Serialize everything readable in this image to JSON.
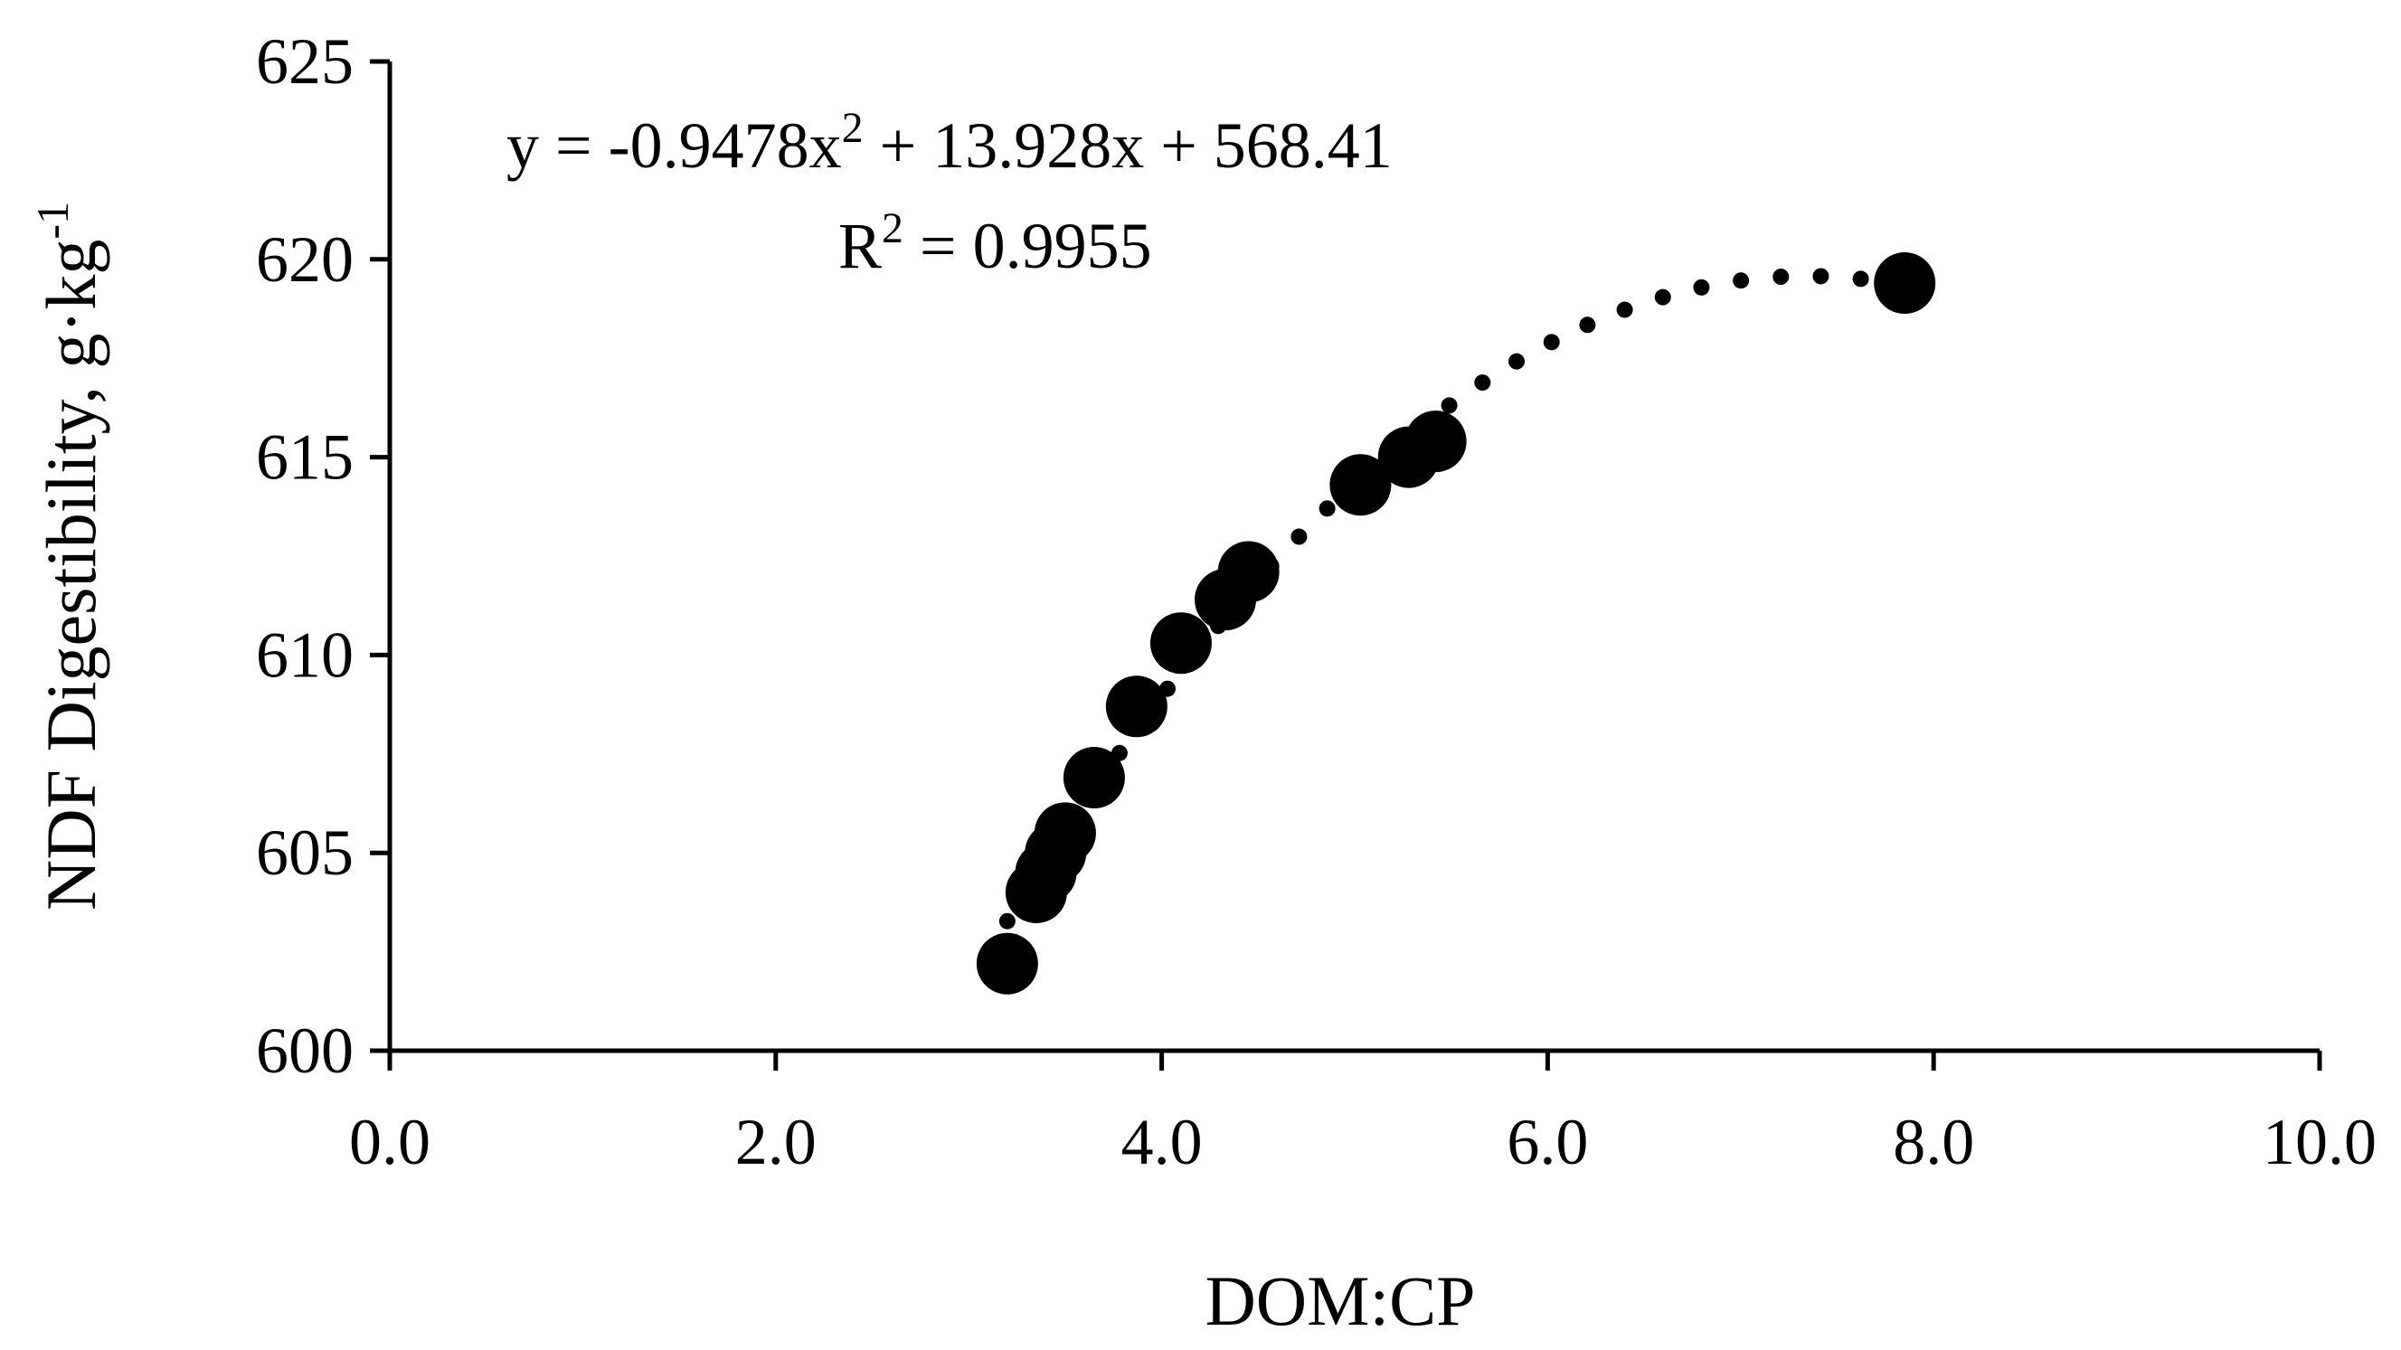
{
  "chart_data": {
    "type": "scatter",
    "title": "",
    "xlabel": "DOM:CP",
    "ylabel_main": "NDF Digestibility, g·kg",
    "ylabel_sup": "-1",
    "xlim": [
      0,
      10
    ],
    "ylim": [
      600,
      625
    ],
    "x_ticks": [
      {
        "value": 0,
        "label": "0.0"
      },
      {
        "value": 2,
        "label": "2.0"
      },
      {
        "value": 4,
        "label": "4.0"
      },
      {
        "value": 6,
        "label": "6.0"
      },
      {
        "value": 8,
        "label": "8.0"
      },
      {
        "value": 10,
        "label": "10.0"
      }
    ],
    "y_ticks": [
      {
        "value": 600,
        "label": "600"
      },
      {
        "value": 605,
        "label": "605"
      },
      {
        "value": 610,
        "label": "610"
      },
      {
        "value": 615,
        "label": "615"
      },
      {
        "value": 620,
        "label": "620"
      },
      {
        "value": 625,
        "label": "625"
      }
    ],
    "grid": false,
    "legend": "none",
    "marker_color": "#000000",
    "series": [
      {
        "points": [
          {
            "x": 3.2,
            "y": 602.2
          },
          {
            "x": 3.35,
            "y": 604.0
          },
          {
            "x": 3.4,
            "y": 604.5
          },
          {
            "x": 3.45,
            "y": 605.0
          },
          {
            "x": 3.5,
            "y": 605.5
          },
          {
            "x": 3.65,
            "y": 606.9
          },
          {
            "x": 3.87,
            "y": 608.7
          },
          {
            "x": 4.1,
            "y": 610.3
          },
          {
            "x": 4.33,
            "y": 611.4
          },
          {
            "x": 4.45,
            "y": 612.1
          },
          {
            "x": 5.03,
            "y": 614.3
          },
          {
            "x": 5.28,
            "y": 615.0
          },
          {
            "x": 5.42,
            "y": 615.4
          },
          {
            "x": 7.85,
            "y": 619.4
          }
        ]
      }
    ],
    "trendline": {
      "type": "polynomial",
      "style": "dotted",
      "coefficients": [
        -0.9478,
        13.928,
        568.41
      ],
      "x_range": [
        3.2,
        7.85
      ]
    },
    "annotations": {
      "equation_prefix": "y = -0.9478x",
      "equation_sup": "2",
      "equation_suffix": " + 13.928x + 568.41",
      "r2_prefix": "R",
      "r2_sup": "2",
      "r2_suffix": " = 0.9955"
    }
  }
}
